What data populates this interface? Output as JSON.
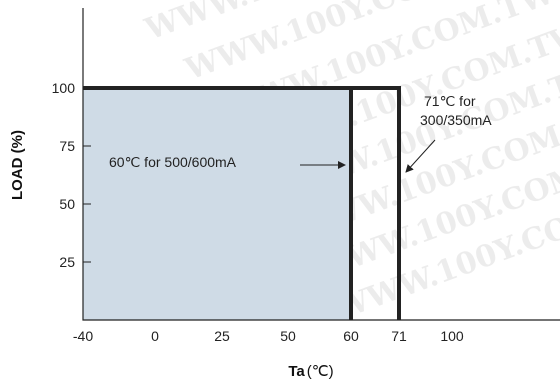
{
  "chart_data": {
    "type": "area",
    "title": "",
    "xlabel": "Ta",
    "xlabel_unit": "(℃)",
    "ylabel": "LOAD (%)",
    "x_ticks": [
      "-40",
      "0",
      "25",
      "50",
      "60",
      "71",
      "100"
    ],
    "y_ticks": [
      "25",
      "50",
      "75",
      "100"
    ],
    "ylim": [
      0,
      120
    ],
    "grid": false,
    "legend": "none",
    "series": [
      {
        "points": [
          [
            -40,
            100
          ],
          [
            60,
            100
          ],
          [
            60,
            0
          ]
        ],
        "color": "#222222",
        "fill": "#cfdbe6"
      },
      {
        "points": [
          [
            60,
            100
          ],
          [
            71,
            100
          ],
          [
            71,
            0
          ]
        ],
        "color": "#222222",
        "fill": "none"
      }
    ],
    "annotations": [
      {
        "id": "a1",
        "lines": [
          "60℃ for 500/600mA"
        ]
      },
      {
        "id": "a2",
        "lines": [
          "71℃ for",
          "300/350mA"
        ]
      }
    ],
    "watermark": "WWW.100Y.COM.TW"
  }
}
